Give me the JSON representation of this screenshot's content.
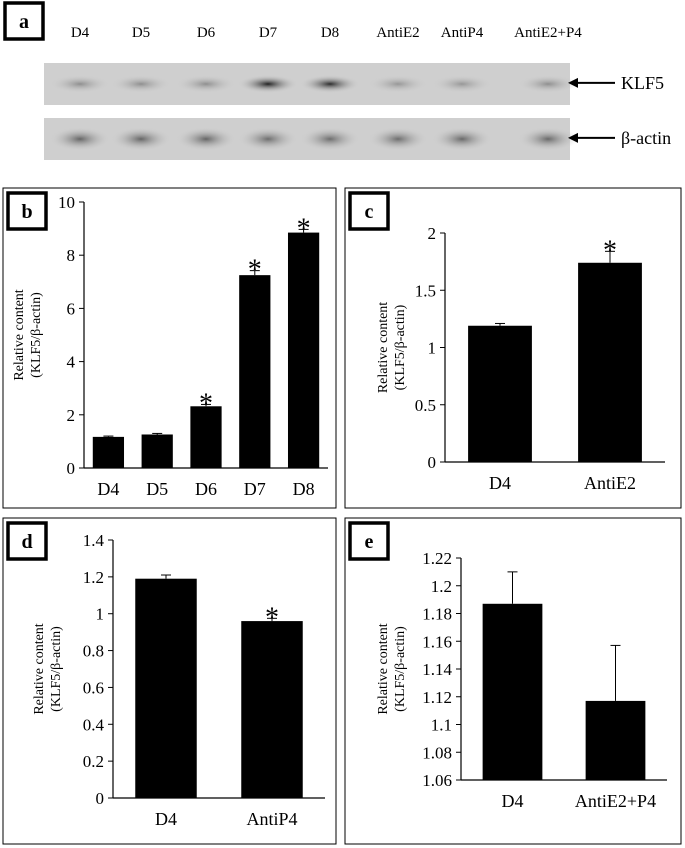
{
  "panel_a": {
    "label": "a",
    "lane_labels": [
      "D4",
      "D5",
      "D6",
      "D7",
      "D8",
      "AntiE2",
      "AntiP4",
      "AntiE2+P4"
    ],
    "bands": [
      {
        "name": "KLF5",
        "intensity": [
          0.3,
          0.3,
          0.3,
          0.88,
          0.82,
          0.26,
          0.26,
          0.3
        ]
      },
      {
        "name": "β-actin",
        "intensity": [
          0.52,
          0.52,
          0.52,
          0.48,
          0.48,
          0.48,
          0.5,
          0.5
        ]
      }
    ]
  },
  "chart_data": [
    {
      "panel": "b",
      "type": "bar",
      "ylabel_line1": "Relative content",
      "ylabel_line2": "(KLF5/β-actin)",
      "categories": [
        "D4",
        "D5",
        "D6",
        "D7",
        "D8"
      ],
      "values": [
        1.17,
        1.26,
        2.32,
        7.25,
        8.85
      ],
      "errors": [
        0.03,
        0.04,
        0.07,
        0.17,
        0.12
      ],
      "significant": [
        false,
        false,
        true,
        true,
        true
      ],
      "ylim": [
        0,
        10
      ],
      "yticks": [
        "0",
        "2",
        "4",
        "6",
        "8",
        "10"
      ]
    },
    {
      "panel": "c",
      "type": "bar",
      "ylabel_line1": "Relative content",
      "ylabel_line2": "(KLF5/β-actin)",
      "categories": [
        "D4",
        "AntiE2"
      ],
      "values": [
        1.19,
        1.74
      ],
      "errors": [
        0.02,
        0.1
      ],
      "significant": [
        false,
        true
      ],
      "ylim": [
        0,
        2
      ],
      "yticks": [
        "0",
        "0.5",
        "1",
        "1.5",
        "2"
      ]
    },
    {
      "panel": "d",
      "type": "bar",
      "ylabel_line1": "Relative content",
      "ylabel_line2": "(KLF5/β-actin)",
      "categories": [
        "D4",
        "AntiP4"
      ],
      "values": [
        1.19,
        0.96
      ],
      "errors": [
        0.02,
        0.015
      ],
      "significant": [
        false,
        true
      ],
      "ylim": [
        0,
        1.4
      ],
      "yticks": [
        "0",
        "0.2",
        "0.4",
        "0.6",
        "0.8",
        "1",
        "1.2",
        "1.4"
      ]
    },
    {
      "panel": "e",
      "type": "bar",
      "ylabel_line1": "Relative content",
      "ylabel_line2": "(KLF5/β-actin)",
      "categories": [
        "D4",
        "AntiE2+P4"
      ],
      "values": [
        1.187,
        1.117
      ],
      "errors": [
        0.023,
        0.04
      ],
      "significant": [
        false,
        false
      ],
      "ylim": [
        1.06,
        1.22
      ],
      "yticks": [
        "1.06",
        "1.08",
        "1.1",
        "1.12",
        "1.14",
        "1.16",
        "1.18",
        "1.2",
        "1.22"
      ]
    }
  ]
}
